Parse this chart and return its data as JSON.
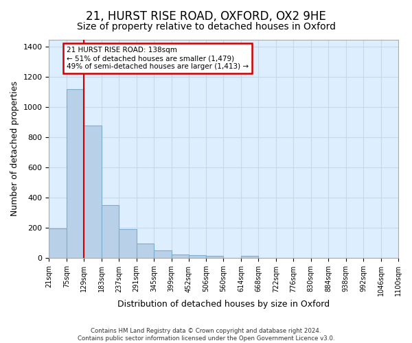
{
  "title": "21, HURST RISE ROAD, OXFORD, OX2 9HE",
  "subtitle": "Size of property relative to detached houses in Oxford",
  "xlabel": "Distribution of detached houses by size in Oxford",
  "ylabel": "Number of detached properties",
  "footnote1": "Contains HM Land Registry data © Crown copyright and database right 2024.",
  "footnote2": "Contains public sector information licensed under the Open Government Licence v3.0.",
  "bin_labels": [
    "21sqm",
    "75sqm",
    "129sqm",
    "183sqm",
    "237sqm",
    "291sqm",
    "345sqm",
    "399sqm",
    "452sqm",
    "506sqm",
    "560sqm",
    "614sqm",
    "668sqm",
    "722sqm",
    "776sqm",
    "830sqm",
    "884sqm",
    "938sqm",
    "992sqm",
    "1046sqm",
    "1100sqm"
  ],
  "bin_edges": [
    21,
    75,
    129,
    183,
    237,
    291,
    345,
    399,
    452,
    506,
    560,
    614,
    668,
    722,
    776,
    830,
    884,
    938,
    992,
    1046,
    1100
  ],
  "bar_values": [
    197,
    1119,
    878,
    351,
    192,
    98,
    50,
    25,
    20,
    17,
    0,
    15,
    0,
    0,
    0,
    0,
    0,
    0,
    0,
    0
  ],
  "bar_color": "#b8d0e8",
  "bar_edge_color": "#7aaed0",
  "property_size": 138,
  "vline_x": 129,
  "vline_color": "#cc0000",
  "annotation_text": "21 HURST RISE ROAD: 138sqm\n← 51% of detached houses are smaller (1,479)\n49% of semi-detached houses are larger (1,413) →",
  "annotation_box_color": "#ffffff",
  "annotation_box_edge_color": "#cc0000",
  "ylim": [
    0,
    1450
  ],
  "yticks": [
    0,
    200,
    400,
    600,
    800,
    1000,
    1200,
    1400
  ],
  "grid_color": "#c8d8e8",
  "axes_bg_color": "#ddeeff",
  "title_fontsize": 12,
  "subtitle_fontsize": 10
}
